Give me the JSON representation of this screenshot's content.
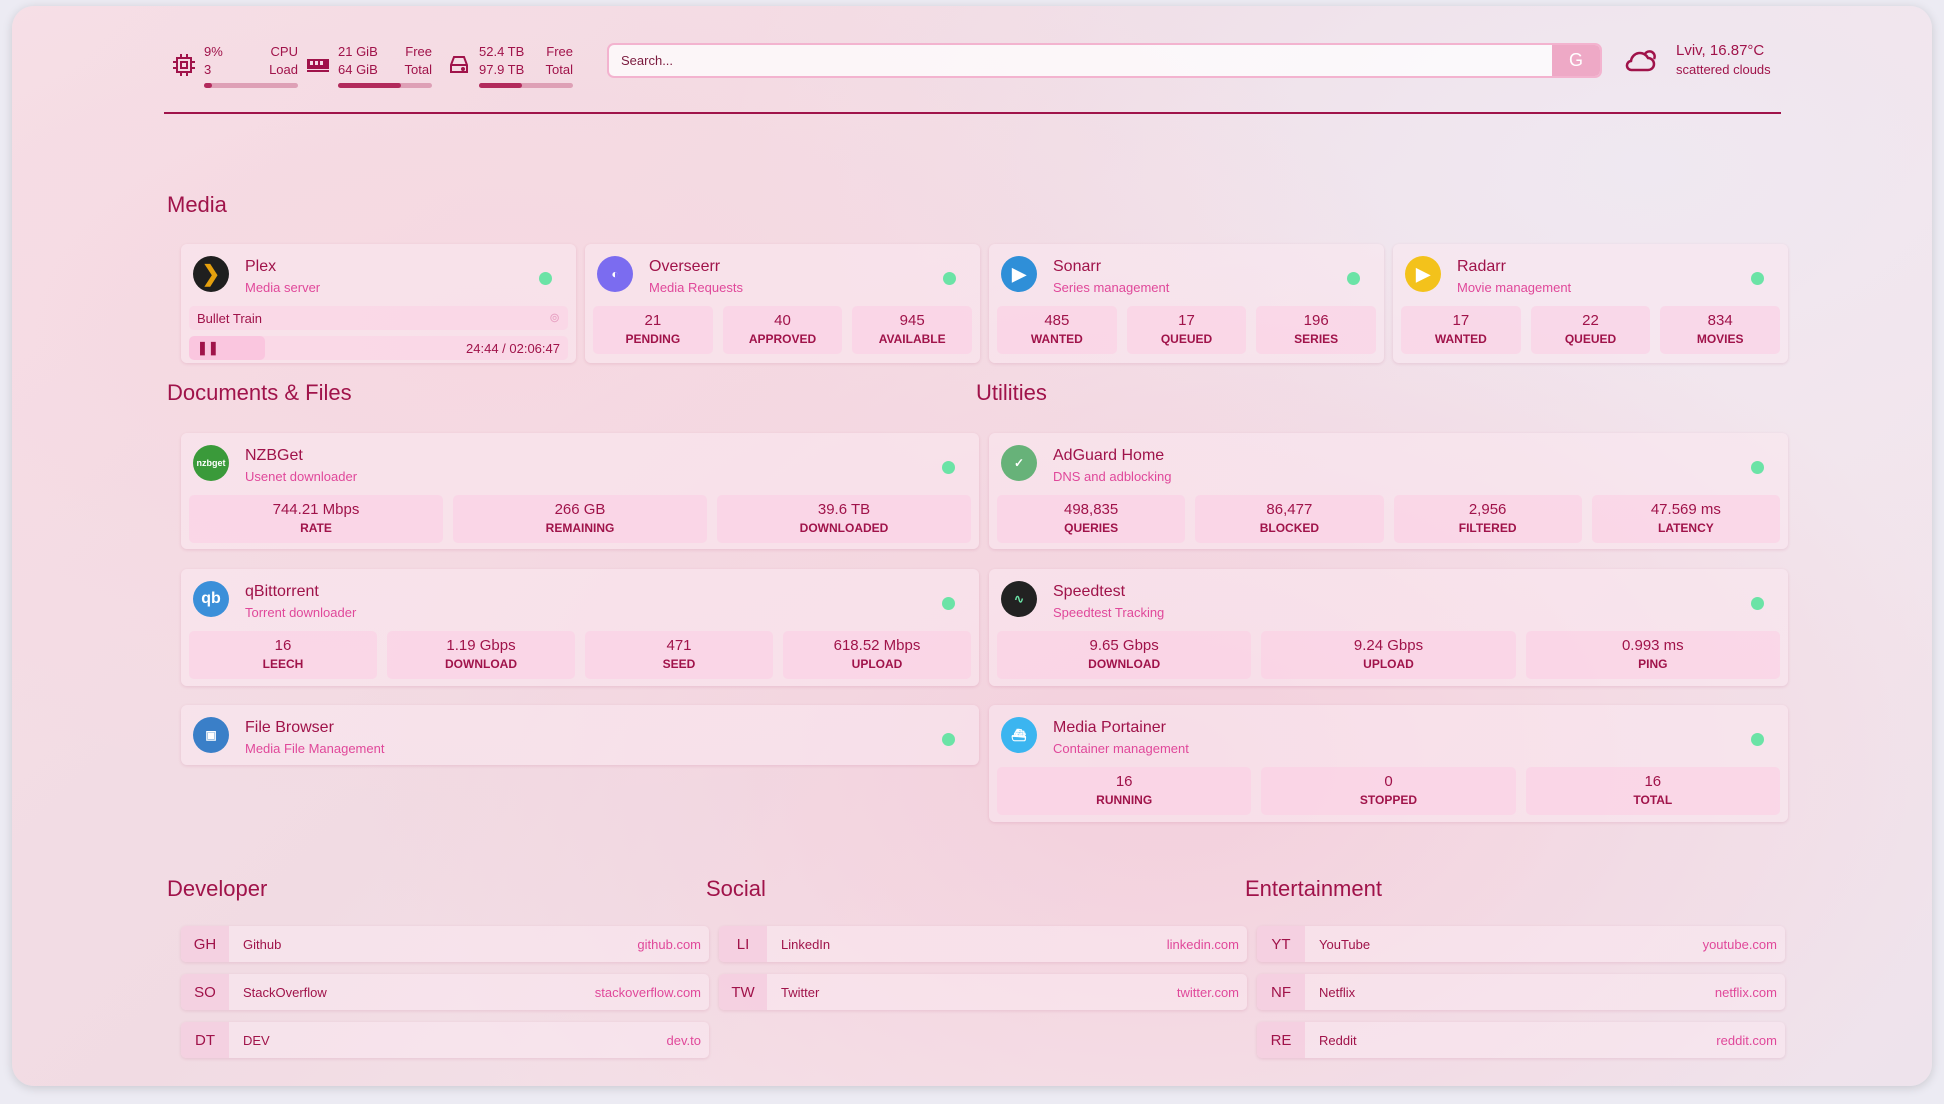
{
  "header": {
    "cpu": {
      "icon": "cpu-chip-icon",
      "value": "9%",
      "value2": "3",
      "label": "CPU",
      "label2": "Load",
      "percent": 9
    },
    "memory": {
      "icon": "memory-icon",
      "value": "21 GiB",
      "value2": "64 GiB",
      "label": "Free",
      "label2": "Total",
      "percent": 67
    },
    "disk": {
      "icon": "hard-drive-icon",
      "value": "52.4 TB",
      "value2": "97.9 TB",
      "label": "Free",
      "label2": "Total",
      "percent": 46
    },
    "search": {
      "placeholder": "Search...",
      "button": "G"
    },
    "weather": {
      "icon": "cloud-sun-icon",
      "location_temp": "Lviv, 16.87°C",
      "condition": "scattered clouds"
    }
  },
  "colors": {
    "accent": "#a0134a",
    "subtitle": "#e0489a",
    "status_ok": "#6be3a6"
  },
  "sections": {
    "media": "Media",
    "docs": "Documents & Files",
    "utilities": "Utilities",
    "developer": "Developer",
    "social": "Social",
    "entertainment": "Entertainment"
  },
  "services": [
    {
      "id": "plex",
      "name": "Plex",
      "desc": "Media server",
      "icon": "plex-icon",
      "color": "#1f1f1f",
      "now_playing": {
        "title": "Bullet Train",
        "time": "24:44 / 02:06:47",
        "progress": 20
      }
    },
    {
      "id": "overseerr",
      "name": "Overseerr",
      "desc": "Media Requests",
      "icon": "overseerr-icon",
      "color": "#7b6cf0",
      "stats": [
        {
          "v": "21",
          "l": "PENDING"
        },
        {
          "v": "40",
          "l": "APPROVED"
        },
        {
          "v": "945",
          "l": "AVAILABLE"
        }
      ]
    },
    {
      "id": "sonarr",
      "name": "Sonarr",
      "desc": "Series management",
      "icon": "sonarr-icon",
      "color": "#2f8fd8",
      "stats": [
        {
          "v": "485",
          "l": "WANTED"
        },
        {
          "v": "17",
          "l": "QUEUED"
        },
        {
          "v": "196",
          "l": "SERIES"
        }
      ]
    },
    {
      "id": "radarr",
      "name": "Radarr",
      "desc": "Movie management",
      "icon": "radarr-icon",
      "color": "#f3c21b",
      "stats": [
        {
          "v": "17",
          "l": "WANTED"
        },
        {
          "v": "22",
          "l": "QUEUED"
        },
        {
          "v": "834",
          "l": "MOVIES"
        }
      ]
    },
    {
      "id": "nzbget",
      "name": "NZBGet",
      "desc": "Usenet downloader",
      "icon": "nzbget-icon",
      "logo_text": "nzbget",
      "color": "#3a9a3a",
      "stats": [
        {
          "v": "744.21 Mbps",
          "l": "RATE"
        },
        {
          "v": "266 GB",
          "l": "REMAINING"
        },
        {
          "v": "39.6 TB",
          "l": "DOWNLOADED"
        }
      ]
    },
    {
      "id": "qbittorrent",
      "name": "qBittorrent",
      "desc": "Torrent downloader",
      "icon": "qbittorrent-icon",
      "logo_text": "qb",
      "color": "#3b8fd9",
      "stats": [
        {
          "v": "16",
          "l": "LEECH"
        },
        {
          "v": "1.19 Gbps",
          "l": "DOWNLOAD"
        },
        {
          "v": "471",
          "l": "SEED"
        },
        {
          "v": "618.52 Mbps",
          "l": "UPLOAD"
        }
      ]
    },
    {
      "id": "filebrowser",
      "name": "File Browser",
      "desc": "Media File Management",
      "icon": "file-browser-icon",
      "color": "#3a7fc8"
    },
    {
      "id": "adguard",
      "name": "AdGuard Home",
      "desc": "DNS and adblocking",
      "icon": "adguard-shield-icon",
      "color": "#67b279",
      "stats": [
        {
          "v": "498,835",
          "l": "QUERIES"
        },
        {
          "v": "86,477",
          "l": "BLOCKED"
        },
        {
          "v": "2,956",
          "l": "FILTERED"
        },
        {
          "v": "47.569 ms",
          "l": "LATENCY"
        }
      ]
    },
    {
      "id": "speedtest",
      "name": "Speedtest",
      "desc": "Speedtest Tracking",
      "icon": "speedtest-icon",
      "color": "#222",
      "stats": [
        {
          "v": "9.65 Gbps",
          "l": "DOWNLOAD"
        },
        {
          "v": "9.24 Gbps",
          "l": "UPLOAD"
        },
        {
          "v": "0.993 ms",
          "l": "PING"
        }
      ]
    },
    {
      "id": "portainer",
      "name": "Media Portainer",
      "desc": "Container management",
      "icon": "portainer-icon",
      "color": "#3bb5f0",
      "stats": [
        {
          "v": "16",
          "l": "RUNNING"
        },
        {
          "v": "0",
          "l": "STOPPED"
        },
        {
          "v": "16",
          "l": "TOTAL"
        }
      ]
    }
  ],
  "bookmarks": {
    "developer": [
      {
        "abbr": "GH",
        "name": "Github",
        "url": "github.com"
      },
      {
        "abbr": "SO",
        "name": "StackOverflow",
        "url": "stackoverflow.com"
      },
      {
        "abbr": "DT",
        "name": "DEV",
        "url": "dev.to"
      }
    ],
    "social": [
      {
        "abbr": "LI",
        "name": "LinkedIn",
        "url": "linkedin.com"
      },
      {
        "abbr": "TW",
        "name": "Twitter",
        "url": "twitter.com"
      }
    ],
    "entertainment": [
      {
        "abbr": "YT",
        "name": "YouTube",
        "url": "youtube.com"
      },
      {
        "abbr": "NF",
        "name": "Netflix",
        "url": "netflix.com"
      },
      {
        "abbr": "RE",
        "name": "Reddit",
        "url": "reddit.com"
      }
    ]
  }
}
